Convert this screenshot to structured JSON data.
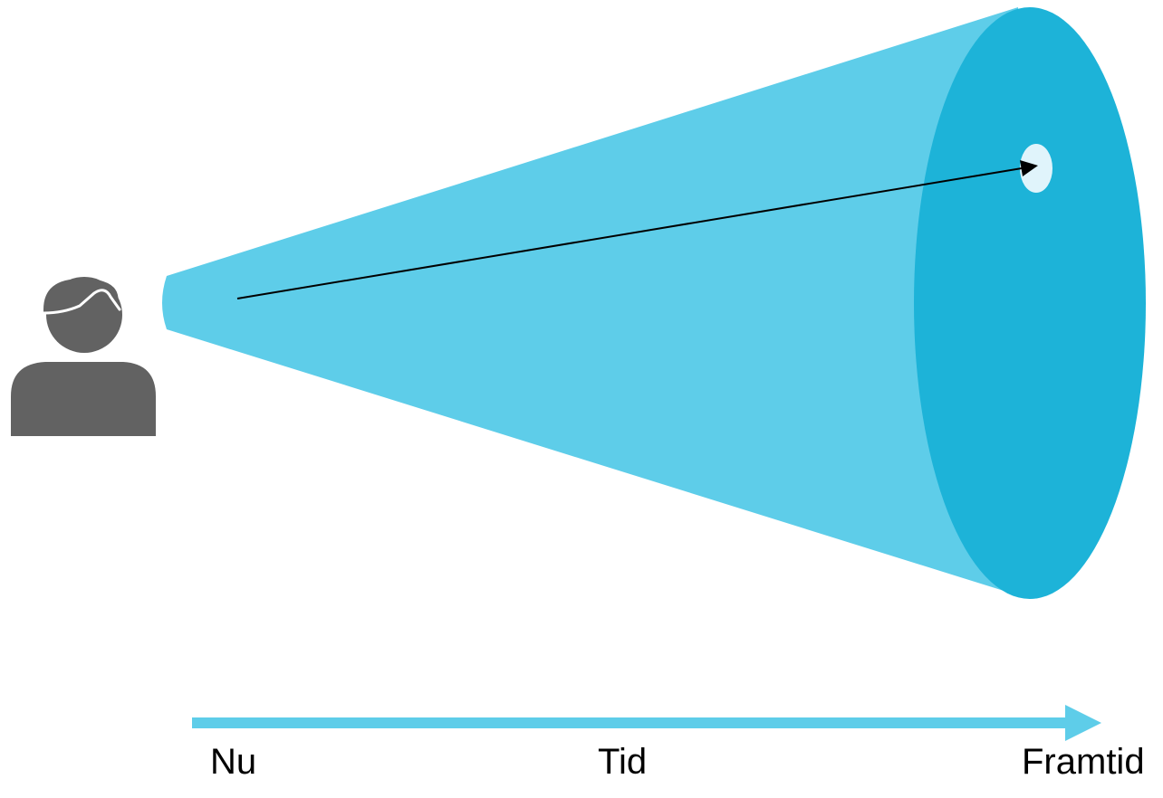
{
  "diagram": {
    "timeline": {
      "start_label": "Nu",
      "middle_label": "Tid",
      "end_label": "Framtid"
    },
    "icons": {
      "person": "person-icon",
      "target": "target-point"
    }
  },
  "colors": {
    "cone_light": "#5ECDE9",
    "cone_dark": "#1DB3D8",
    "person": "#626262",
    "target_dot": "#E0F4FB",
    "arrow_line": "#000000",
    "timeline_arrow": "#5ECDE9"
  }
}
